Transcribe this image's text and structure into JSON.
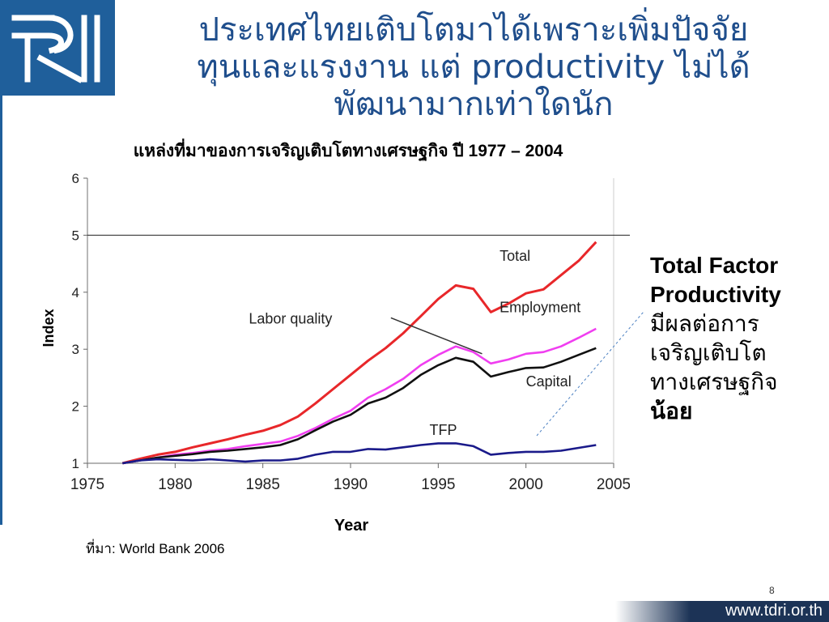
{
  "slide": {
    "title_line1": "ประเทศไทยเติบโตมาได้เพราะเพิ่มปัจจัย",
    "title_line2": "ทุนและแรงงาน แต่ productivity ไม่ได้",
    "title_line3": "พัฒนามากเท่าใดนัก",
    "side_note_head_1": "Total Factor",
    "side_note_head_2": "Productivity",
    "side_note_body_1": "มีผลต่อการ",
    "side_note_body_2": "เจริญเติบโต",
    "side_note_body_3": "ทางเศรษฐกิจ",
    "side_note_body_4": "น้อย",
    "source": "ที่มา: World Bank 2006",
    "page_number": "8",
    "footer_url": "www.tdri.or.th",
    "colors": {
      "title": "#1f4e8c",
      "logo_bg": "#1f5f9b",
      "footer_bg": "#1c3356"
    }
  },
  "chart_data": {
    "type": "line",
    "title": "แหล่งที่มาของการเจริญเติบโตทางเศรษฐกิจ ปี 1977 – 2004",
    "xlabel": "Year",
    "ylabel": "Index",
    "xlim": [
      1975,
      2005
    ],
    "ylim": [
      1,
      6
    ],
    "x_ticks": [
      1975,
      1980,
      1985,
      1990,
      1995,
      2000,
      2005
    ],
    "y_ticks": [
      1,
      2,
      3,
      4,
      5,
      6
    ],
    "grid": "horizontal at y=5 only",
    "series": [
      {
        "name": "Total",
        "color": "#e8272a",
        "x": [
          1977,
          1978,
          1979,
          1980,
          1981,
          1982,
          1983,
          1984,
          1985,
          1986,
          1987,
          1988,
          1989,
          1990,
          1991,
          1992,
          1993,
          1994,
          1995,
          1996,
          1997,
          1998,
          1999,
          2000,
          2001,
          2002,
          2003,
          2004
        ],
        "y": [
          1.0,
          1.08,
          1.15,
          1.2,
          1.28,
          1.35,
          1.42,
          1.5,
          1.57,
          1.67,
          1.82,
          2.05,
          2.3,
          2.55,
          2.8,
          3.02,
          3.28,
          3.58,
          3.88,
          4.12,
          4.06,
          3.65,
          3.8,
          3.98,
          4.05,
          4.3,
          4.55,
          4.88
        ]
      },
      {
        "name": "Employment",
        "color": "#f03ef0",
        "x": [
          1977,
          1978,
          1979,
          1980,
          1981,
          1982,
          1983,
          1984,
          1985,
          1986,
          1987,
          1988,
          1989,
          1990,
          1991,
          1992,
          1993,
          1994,
          1995,
          1996,
          1997,
          1998,
          1999,
          2000,
          2001,
          2002,
          2003,
          2004
        ],
        "y": [
          1.0,
          1.05,
          1.1,
          1.15,
          1.18,
          1.22,
          1.25,
          1.3,
          1.34,
          1.38,
          1.48,
          1.62,
          1.78,
          1.92,
          2.15,
          2.3,
          2.48,
          2.72,
          2.9,
          3.05,
          2.95,
          2.75,
          2.82,
          2.92,
          2.95,
          3.05,
          3.2,
          3.36
        ]
      },
      {
        "name": "Capital",
        "color": "#111111",
        "x": [
          1977,
          1978,
          1979,
          1980,
          1981,
          1982,
          1983,
          1984,
          1985,
          1986,
          1987,
          1988,
          1989,
          1990,
          1991,
          1992,
          1993,
          1994,
          1995,
          1996,
          1997,
          1998,
          1999,
          2000,
          2001,
          2002,
          2003,
          2004
        ],
        "y": [
          1.0,
          1.05,
          1.1,
          1.13,
          1.16,
          1.2,
          1.22,
          1.25,
          1.28,
          1.32,
          1.42,
          1.58,
          1.73,
          1.85,
          2.05,
          2.15,
          2.32,
          2.55,
          2.72,
          2.85,
          2.78,
          2.52,
          2.6,
          2.67,
          2.68,
          2.78,
          2.9,
          3.02
        ]
      },
      {
        "name": "TFP",
        "color": "#1a1a8a",
        "x": [
          1977,
          1978,
          1979,
          1980,
          1981,
          1982,
          1983,
          1984,
          1985,
          1986,
          1987,
          1988,
          1989,
          1990,
          1991,
          1992,
          1993,
          1994,
          1995,
          1996,
          1997,
          1998,
          1999,
          2000,
          2001,
          2002,
          2003,
          2004
        ],
        "y": [
          1.0,
          1.05,
          1.07,
          1.06,
          1.05,
          1.07,
          1.05,
          1.03,
          1.05,
          1.05,
          1.08,
          1.15,
          1.2,
          1.2,
          1.25,
          1.24,
          1.28,
          1.32,
          1.35,
          1.35,
          1.3,
          1.15,
          1.18,
          1.2,
          1.2,
          1.22,
          1.27,
          1.32
        ]
      }
    ],
    "annotations": [
      {
        "text": "Total",
        "at": [
          1998.5,
          4.55
        ]
      },
      {
        "text": "Employment",
        "at": [
          1998.5,
          3.65
        ]
      },
      {
        "text": "Labor quality",
        "at": [
          1984.2,
          3.45
        ]
      },
      {
        "text": "Capital",
        "at": [
          2000,
          2.35
        ]
      },
      {
        "text": "TFP",
        "at": [
          1994.5,
          1.5
        ]
      }
    ]
  }
}
